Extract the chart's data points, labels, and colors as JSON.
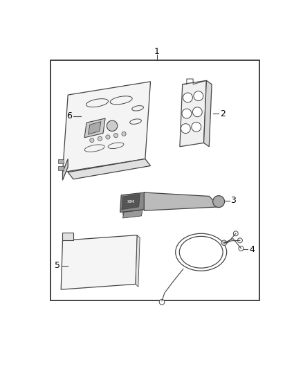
{
  "background_color": "#ffffff",
  "border_color": "#222222",
  "line_color": "#444444",
  "text_color": "#000000",
  "fig_width": 4.38,
  "fig_height": 5.33,
  "dpi": 100
}
